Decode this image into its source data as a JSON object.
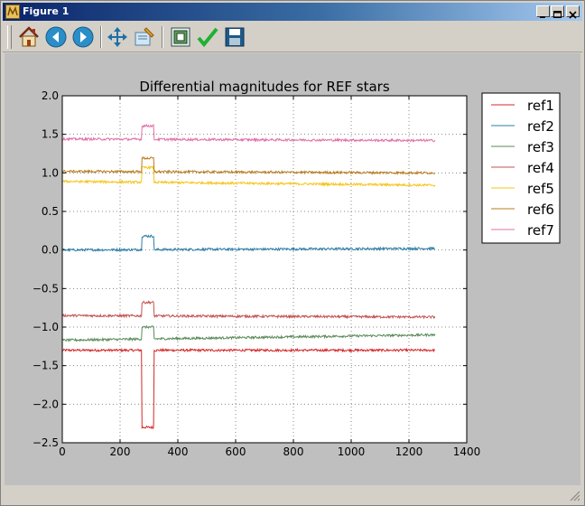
{
  "window": {
    "title": "Figure 1"
  },
  "toolbar": {
    "buttons": [
      {
        "icon": "home-icon"
      },
      {
        "icon": "back-icon"
      },
      {
        "icon": "forward-icon"
      },
      {
        "icon": "pan-icon"
      },
      {
        "icon": "zoom-icon"
      },
      {
        "icon": "configure-subplots-icon"
      },
      {
        "icon": "edit-check-icon"
      },
      {
        "icon": "save-icon"
      }
    ]
  },
  "chart_data": {
    "type": "line",
    "title": "Differential magnitudes for REF stars",
    "xlabel": "",
    "ylabel": "",
    "xlim": [
      0,
      1400
    ],
    "ylim": [
      -2.5,
      2.0
    ],
    "xticks": [
      "0",
      "200",
      "400",
      "600",
      "800",
      "1000",
      "1200",
      "1400"
    ],
    "yticks": [
      "2.0",
      "1.5",
      "1.0",
      "0.5",
      "0.0",
      "−0.5",
      "−1.0",
      "−1.5",
      "−2.0",
      "−2.5"
    ],
    "grid": true,
    "legend": "outside-right",
    "x_range": [
      0,
      1290
    ],
    "step_x": [
      276,
      316
    ],
    "series": [
      {
        "name": "ref1",
        "color": "#d62728",
        "base_start": -1.3,
        "base_end": -1.3,
        "step": -2.3
      },
      {
        "name": "ref2",
        "color": "#2e7ea6",
        "base_start": 0.0,
        "base_end": 0.02,
        "step": 0.18
      },
      {
        "name": "ref3",
        "color": "#5a8a5a",
        "base_start": -1.17,
        "base_end": -1.1,
        "step": -1.0
      },
      {
        "name": "ref4",
        "color": "#c45050",
        "base_start": -0.85,
        "base_end": -0.87,
        "step": -0.68
      },
      {
        "name": "ref5",
        "color": "#f5c518",
        "base_start": 0.89,
        "base_end": 0.84,
        "step": 1.07
      },
      {
        "name": "ref6",
        "color": "#b87d20",
        "base_start": 1.02,
        "base_end": 1.0,
        "step": 1.19
      },
      {
        "name": "ref7",
        "color": "#e070a8",
        "base_start": 1.44,
        "base_end": 1.42,
        "step": 1.61
      }
    ]
  }
}
